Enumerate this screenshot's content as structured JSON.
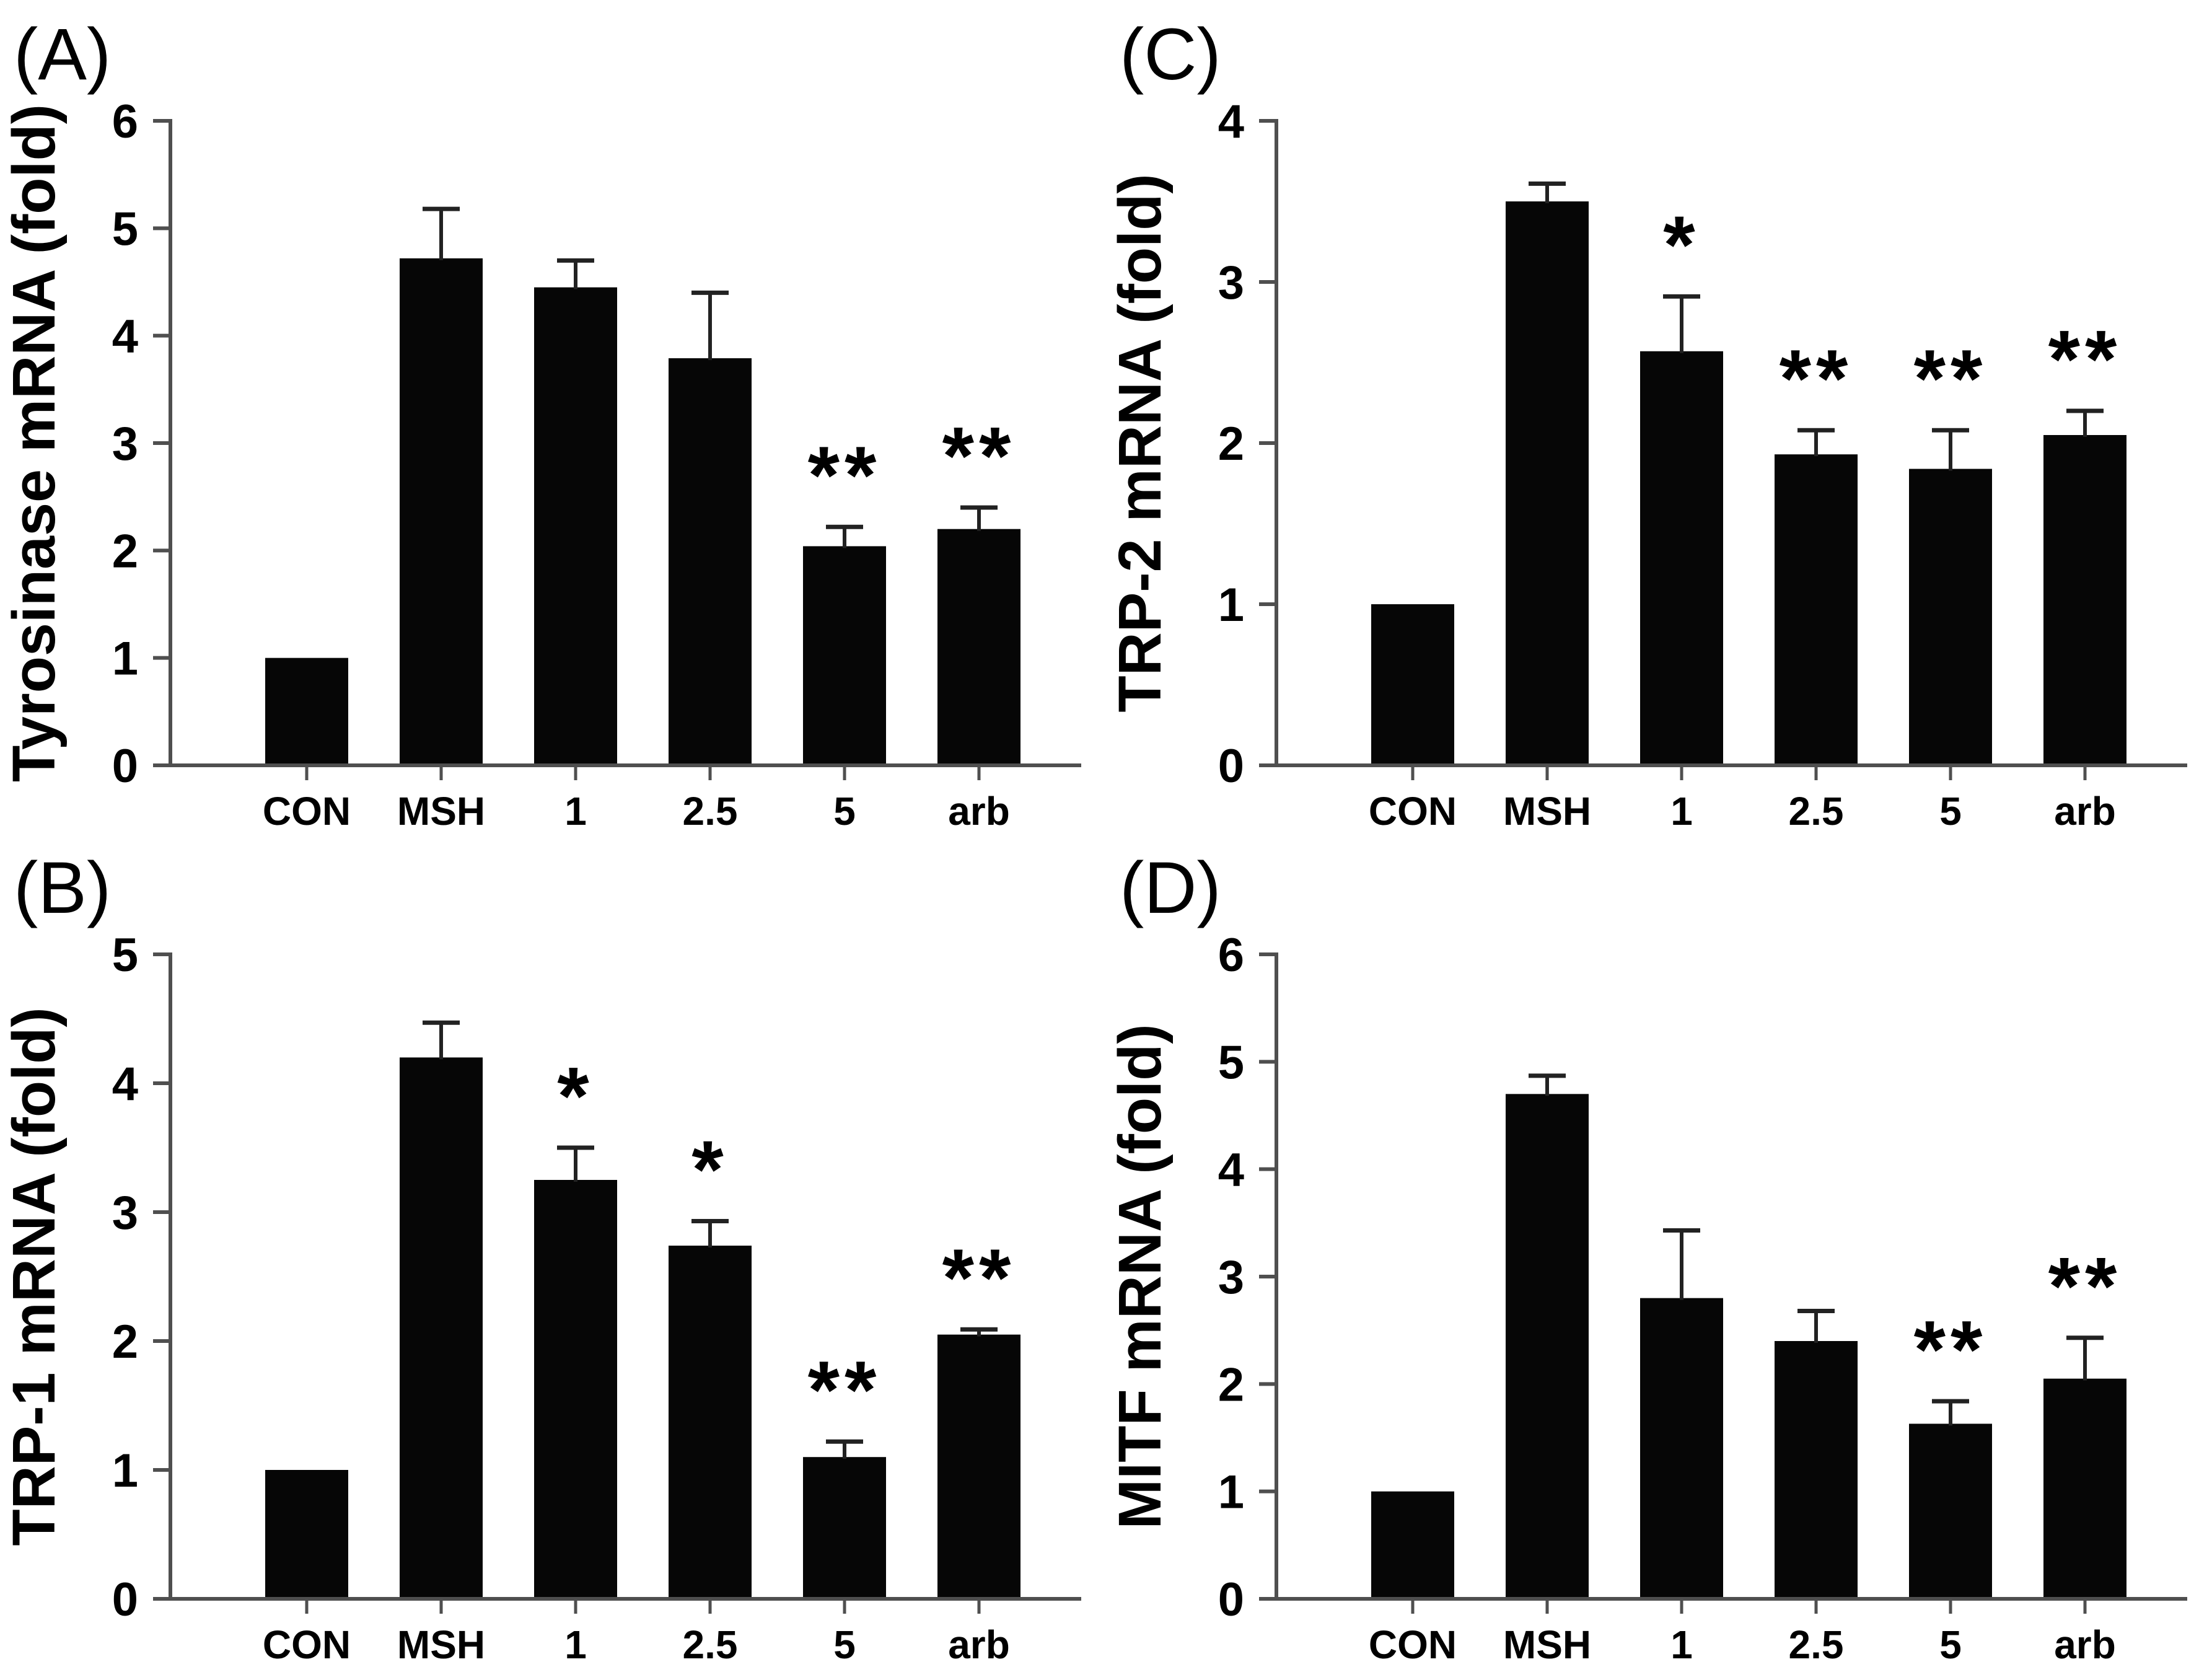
{
  "figure": {
    "background": "#ffffff",
    "bar_color": "#060606",
    "axis_color": "#4f4f4f",
    "error_bar_color": "#222222",
    "text_color": "#000000"
  },
  "chart_data": [
    {
      "type": "bar",
      "panel_label": "(A)",
      "position": "top-left",
      "ylabel": "Tyrosinase mRNA (fold)",
      "xlabel": "",
      "categories": [
        "CON",
        "MSH",
        "1",
        "2.5",
        "5",
        "arb"
      ],
      "values": [
        1.0,
        4.72,
        4.45,
        3.79,
        2.04,
        2.2
      ],
      "errors": [
        0,
        0.46,
        0.25,
        0.61,
        0.18,
        0.2
      ],
      "significance": [
        "",
        "",
        "",
        "",
        "**",
        "**"
      ],
      "ylim": [
        0,
        6
      ],
      "ytick_step": 1,
      "grid": false,
      "legend": "none"
    },
    {
      "type": "bar",
      "panel_label": "(C)",
      "position": "top-right",
      "ylabel": "TRP-2 mRNA (fold)",
      "xlabel": "",
      "categories": [
        "CON",
        "MSH",
        "1",
        "2.5",
        "5",
        "arb"
      ],
      "values": [
        1.0,
        3.5,
        2.57,
        1.93,
        1.84,
        2.05
      ],
      "errors": [
        0,
        0.11,
        0.34,
        0.15,
        0.24,
        0.15
      ],
      "significance": [
        "",
        "",
        "*",
        "**",
        "**",
        "**"
      ],
      "ylim": [
        0,
        4
      ],
      "ytick_step": 1,
      "grid": false,
      "legend": "none"
    },
    {
      "type": "bar",
      "panel_label": "(B)",
      "position": "bottom-left",
      "ylabel": "TRP-1 mRNA (fold)",
      "xlabel": "",
      "categories": [
        "CON",
        "MSH",
        "1",
        "2.5",
        "5",
        "arb"
      ],
      "values": [
        1.0,
        4.2,
        3.25,
        2.74,
        1.1,
        2.05
      ],
      "errors": [
        0,
        0.27,
        0.25,
        0.19,
        0.12,
        0.04
      ],
      "significance": [
        "",
        "",
        "*",
        "*",
        "**",
        "**"
      ],
      "ylim": [
        0,
        5
      ],
      "ytick_step": 1,
      "grid": false,
      "legend": "none"
    },
    {
      "type": "bar",
      "panel_label": "(D)",
      "position": "bottom-right",
      "ylabel": "MITF mRNA (fold)",
      "xlabel": "",
      "categories": [
        "CON",
        "MSH",
        "1",
        "2.5",
        "5",
        "arb"
      ],
      "values": [
        1.0,
        4.7,
        2.8,
        2.4,
        1.63,
        2.05
      ],
      "errors": [
        0,
        0.17,
        0.63,
        0.28,
        0.21,
        0.38
      ],
      "significance": [
        "",
        "",
        "",
        "",
        "**",
        "**"
      ],
      "ylim": [
        0,
        6
      ],
      "ytick_step": 1,
      "grid": false,
      "legend": "none"
    }
  ]
}
